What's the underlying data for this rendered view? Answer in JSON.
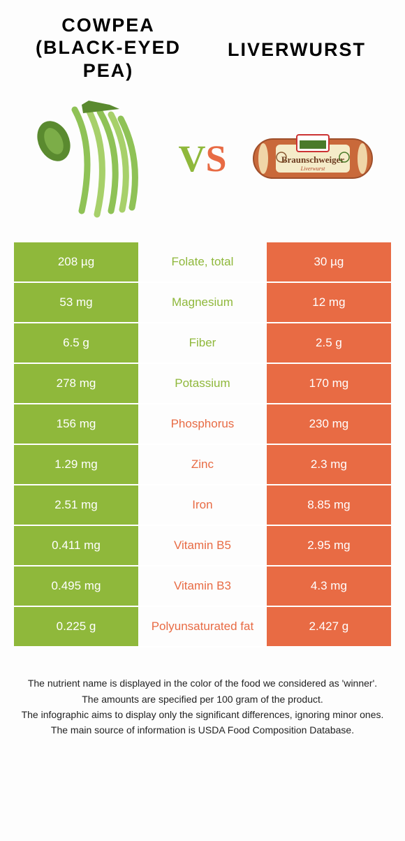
{
  "colors": {
    "green": "#8fb83b",
    "orange": "#e86b44"
  },
  "header": {
    "left_title": "COWPEA (BLACK-EYED PEA)",
    "right_title": "LIVERWURST",
    "vs_v": "V",
    "vs_s": "S"
  },
  "rows": [
    {
      "left": "208 µg",
      "mid": "Folate, total",
      "right": "30 µg",
      "winner": "green"
    },
    {
      "left": "53 mg",
      "mid": "Magnesium",
      "right": "12 mg",
      "winner": "green"
    },
    {
      "left": "6.5 g",
      "mid": "Fiber",
      "right": "2.5 g",
      "winner": "green"
    },
    {
      "left": "278 mg",
      "mid": "Potassium",
      "right": "170 mg",
      "winner": "green"
    },
    {
      "left": "156 mg",
      "mid": "Phosphorus",
      "right": "230 mg",
      "winner": "orange"
    },
    {
      "left": "1.29 mg",
      "mid": "Zinc",
      "right": "2.3 mg",
      "winner": "orange"
    },
    {
      "left": "2.51 mg",
      "mid": "Iron",
      "right": "8.85 mg",
      "winner": "orange"
    },
    {
      "left": "0.411 mg",
      "mid": "Vitamin B5",
      "right": "2.95 mg",
      "winner": "orange"
    },
    {
      "left": "0.495 mg",
      "mid": "Vitamin B3",
      "right": "4.3 mg",
      "winner": "orange"
    },
    {
      "left": "0.225 g",
      "mid": "Polyunsaturated fat",
      "right": "2.427 g",
      "winner": "orange"
    }
  ],
  "footer": {
    "l1": "The nutrient name is displayed in the color of the food we considered as 'winner'.",
    "l2": "The amounts are specified per 100 gram of the product.",
    "l3": "The infographic aims to display only the significant differences, ignoring minor ones.",
    "l4": "The main source of information is USDA Food Composition Database."
  },
  "liver_label": {
    "top": "Braunschweiger",
    "sub": "Liverwurst"
  }
}
